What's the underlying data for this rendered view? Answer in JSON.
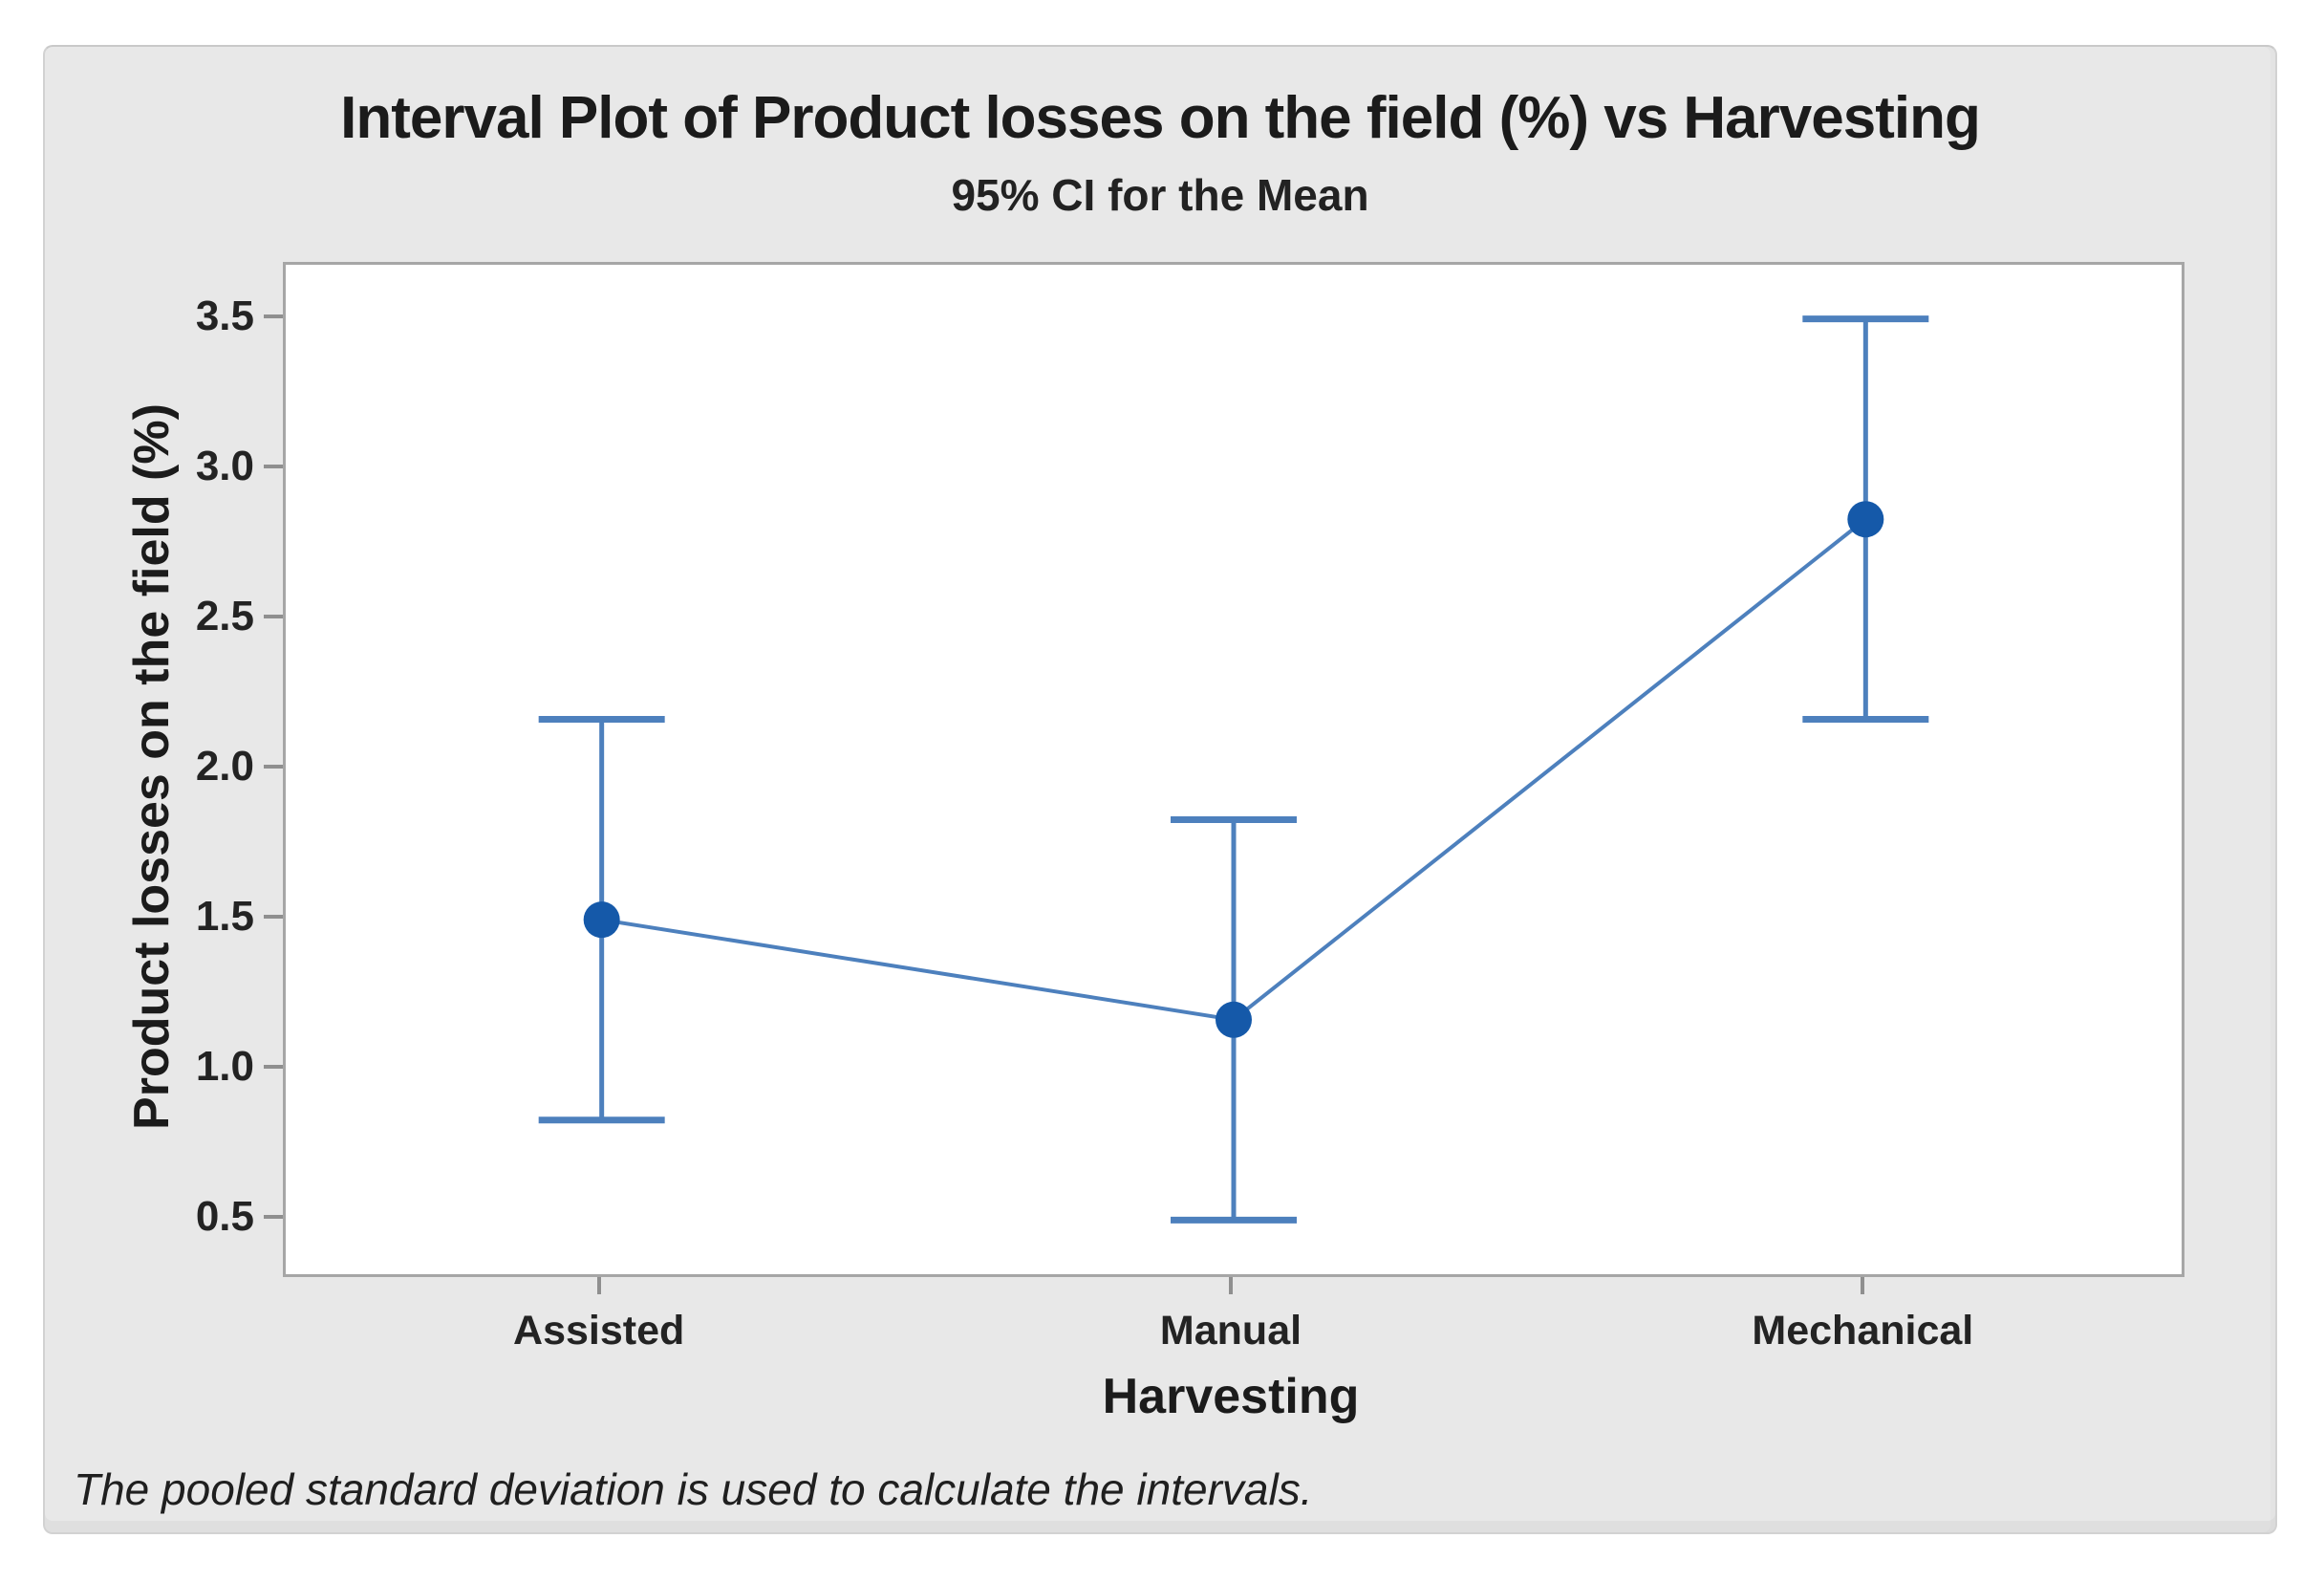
{
  "chart_data": {
    "type": "line",
    "subtype": "interval-plot",
    "title": "Interval Plot of Product losses on the field (%) vs Harvesting",
    "subtitle": "95% CI for the Mean",
    "xlabel": "Harvesting",
    "ylabel": "Product losses on the field (%)",
    "footnote": "The pooled standard deviation is used to calculate the intervals.",
    "categories": [
      "Assisted",
      "Manual",
      "Mechanical"
    ],
    "series": [
      {
        "name": "Mean",
        "values": [
          1.5,
          1.167,
          2.833
        ]
      },
      {
        "name": "95% CI lower",
        "values": [
          0.833,
          0.5,
          2.167
        ]
      },
      {
        "name": "95% CI upper",
        "values": [
          2.167,
          1.833,
          3.5
        ]
      }
    ],
    "yticks": [
      "0.5",
      "1.0",
      "1.5",
      "2.0",
      "2.5",
      "3.0",
      "3.5"
    ],
    "ylim": [
      0.32,
      3.68
    ],
    "grid": false,
    "legend": "none",
    "colors": {
      "marker": "#1559a9",
      "interval": "#4d80bd",
      "frame": "#a6a6a6",
      "tick": "#8f8f8f",
      "canvas_bg": "#e8e8e8",
      "page_bg": "#ffffff",
      "text": "#1d1d1d"
    }
  }
}
